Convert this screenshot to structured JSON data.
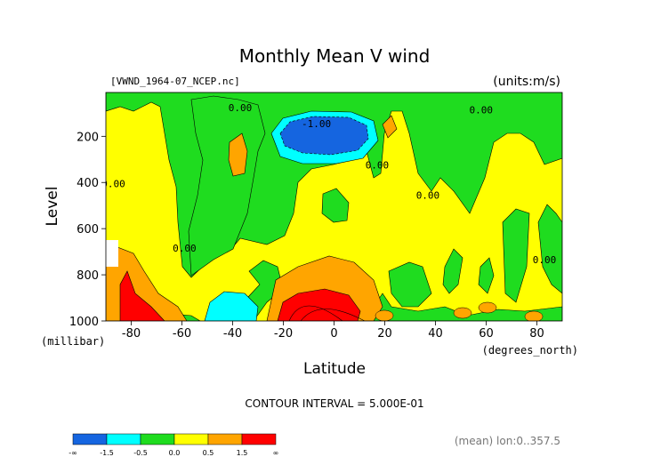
{
  "title": "Monthly Mean V wind",
  "file_label": "[VWND_1964-07_NCEP.nc]",
  "units_label": "(units:m/s)",
  "contour_interval_text": "CONTOUR INTERVAL = 5.000E-01",
  "footer_note": "(mean) lon:0..357.5",
  "colors": {
    "le_-1.5": "#1565e0",
    "-1.5_-0.5": "#00ffff",
    "-0.5_0.0": "#1fdc1f",
    "0.0_0.5": "#ffff00",
    "0.5_1.5": "#ffa500",
    "gt_1.5": "#ff0000"
  },
  "chart_data": {
    "type": "heatmap",
    "title": "Monthly Mean V wind",
    "xlabel": "Latitude",
    "xlabel_units": "(degrees_north)",
    "ylabel": "Level",
    "ylabel_units": "(millibar)",
    "xlim": [
      -90,
      90
    ],
    "ylim": [
      1000,
      10
    ],
    "x_ticks": [
      -80,
      -60,
      -40,
      -20,
      0,
      20,
      40,
      60,
      80
    ],
    "y_ticks": [
      200,
      400,
      600,
      800,
      1000
    ],
    "contour_labels": [
      {
        "text": "0.00",
        "x": -37,
        "y": 90
      },
      {
        "text": "0.00",
        "x": 58,
        "y": 100
      },
      {
        "text": "-1.00",
        "x": -7,
        "y": 160
      },
      {
        "text": "0.00",
        "x": 17,
        "y": 340
      },
      {
        "text": "0.00",
        "x": 37,
        "y": 470
      },
      {
        "text": "0.00",
        "x": -87,
        "y": 420
      },
      {
        "text": "0.00",
        "x": -59,
        "y": 700
      },
      {
        "text": "0.00",
        "x": 83,
        "y": 750
      }
    ],
    "regions": [
      {
        "level": "0.0_0.5",
        "lat": [
          -90,
          90
        ],
        "p": [
          10,
          1000
        ],
        "note": "background"
      },
      {
        "level": "-0.5_0.0",
        "name": "upper-green-band"
      },
      {
        "level": "le_-1.5",
        "name": "tropopause-jet-core",
        "center": [
          -10,
          160
        ]
      },
      {
        "level": "-1.5_-0.5",
        "name": "jet-core-halo"
      },
      {
        "level": "0.5_1.5",
        "name": "near-equator-surface-orange",
        "center": [
          -10,
          920
        ]
      },
      {
        "level": "gt_1.5",
        "name": "near-equator-surface-red",
        "center": [
          -10,
          975
        ]
      },
      {
        "level": "gt_1.5",
        "name": "south-polar-surface-red",
        "center": [
          -83,
          950
        ]
      },
      {
        "level": "-1.5_-0.5",
        "name": "southern-midlat-surface-cyan",
        "center": [
          -40,
          950
        ]
      }
    ],
    "colorbar": {
      "boundaries": [
        "-∞",
        "-1.5",
        "-0.5",
        "0.0",
        "0.5",
        "1.5",
        "∞"
      ],
      "levels": [
        "le_-1.5",
        "-1.5_-0.5",
        "-0.5_0.0",
        "0.0_0.5",
        "0.5_1.5",
        "gt_1.5"
      ]
    }
  }
}
